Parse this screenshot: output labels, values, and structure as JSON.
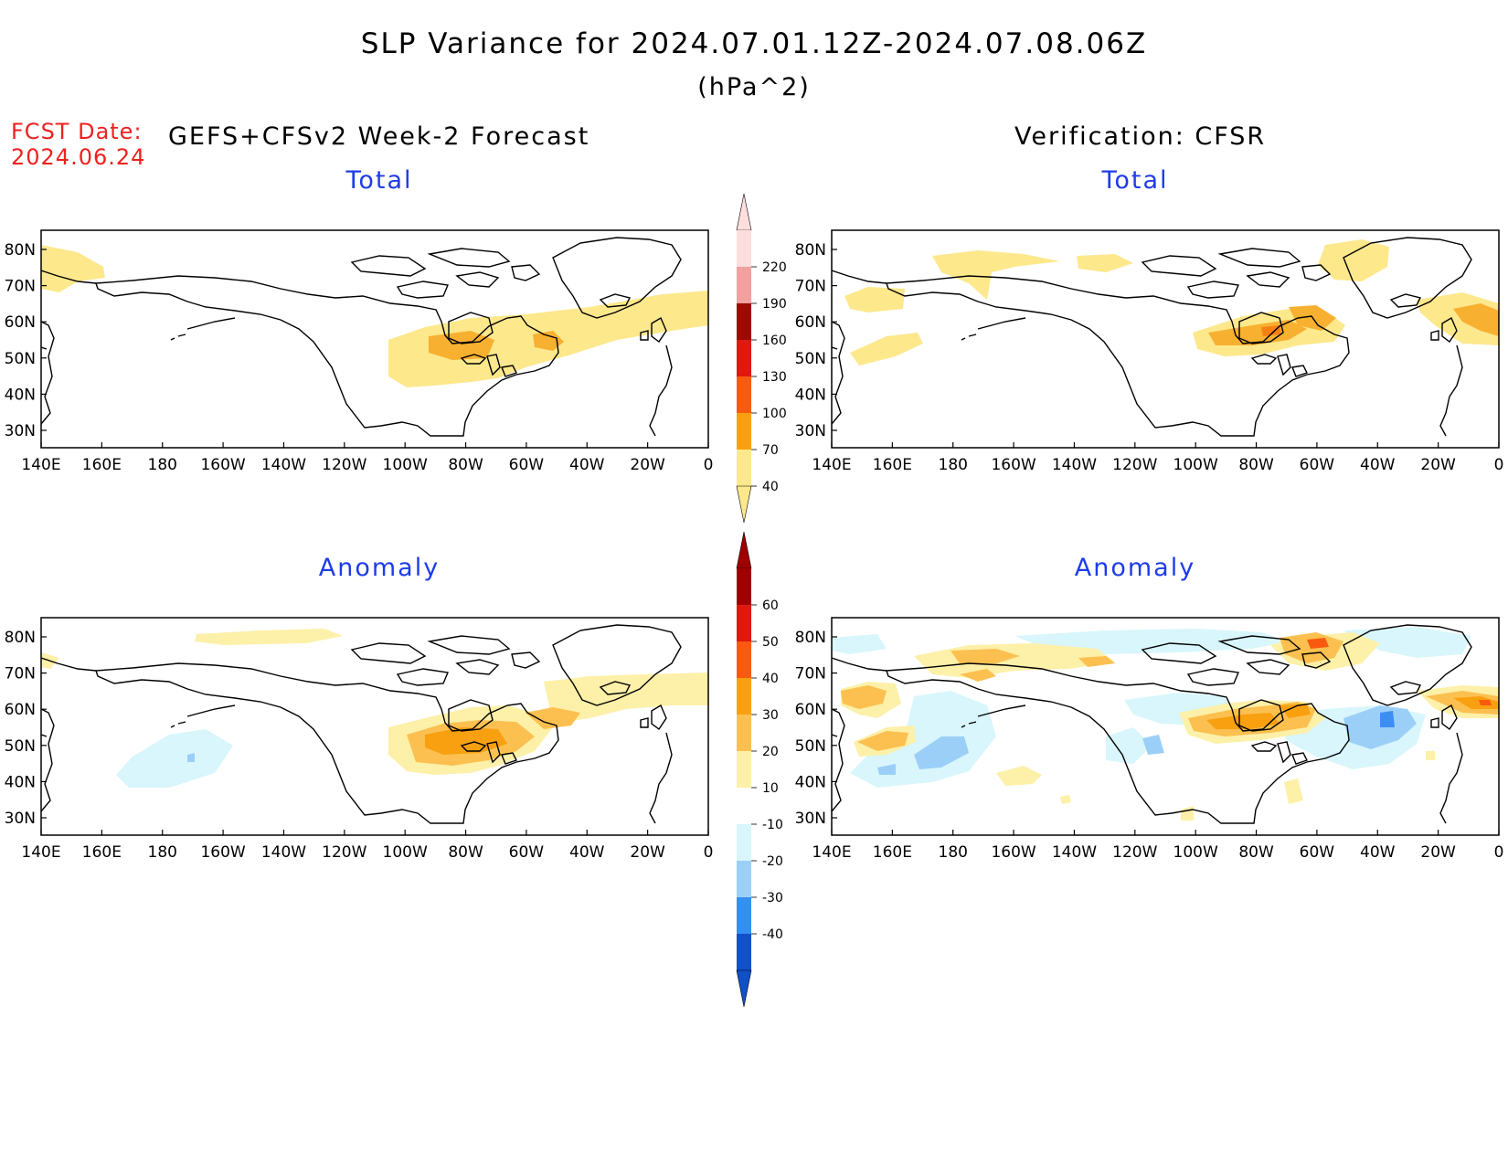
{
  "title": "SLP Variance for 2024.07.01.12Z-2024.07.08.06Z",
  "units": "(hPa^2)",
  "fcst_date_label": "FCST Date:",
  "fcst_date": "2024.06.24",
  "left_column_title": "GEFS+CFSv2 Week-2 Forecast",
  "right_column_title": "Verification: CFSR",
  "panels": [
    {
      "title": "Total"
    },
    {
      "title": "Total"
    },
    {
      "title": "Anomaly"
    },
    {
      "title": "Anomaly"
    }
  ],
  "lon_ticks": [
    "140E",
    "160E",
    "180",
    "160W",
    "140W",
    "120W",
    "100W",
    "80W",
    "60W",
    "40W",
    "20W",
    "0"
  ],
  "lat_ticks": [
    "80N",
    "70N",
    "60N",
    "50N",
    "40N",
    "30N"
  ],
  "colorbar_total": {
    "labels": [
      "220",
      "190",
      "160",
      "130",
      "100",
      "70",
      "40"
    ],
    "colors": [
      "#ffdede",
      "#f2a0a0",
      "#9c0a00",
      "#dc1a10",
      "#f85a10",
      "#f8a010",
      "#fde88c"
    ]
  },
  "colorbar_anomaly": {
    "labels": [
      "60",
      "50",
      "40",
      "30",
      "20",
      "10",
      "-10",
      "-20",
      "-30",
      "-40"
    ],
    "colors": [
      "#a00000",
      "#dc1a10",
      "#f85a10",
      "#f8a010",
      "#fcc050",
      "#fdf0a8",
      "#ffffff",
      "#d8f6fc",
      "#9ccff8",
      "#3290f0",
      "#1050c8"
    ]
  },
  "palette": {
    "c40": "#fde88c",
    "c70": "#f8b030",
    "c100": "#f88010",
    "c130": "#e04010",
    "a10": "#fdf0a8",
    "a20": "#fcc050",
    "a30": "#f8a010",
    "a40": "#f85a10",
    "n10": "#d8f6fc",
    "n20": "#9ccff8",
    "n30": "#3c8ef0"
  }
}
